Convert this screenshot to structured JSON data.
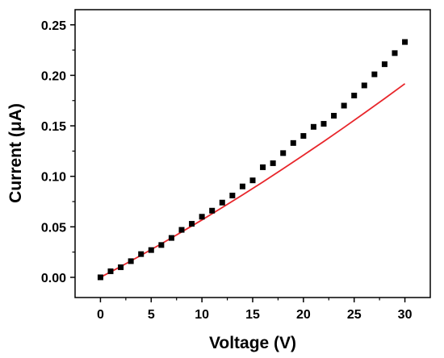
{
  "chart_data": {
    "type": "scatter",
    "xlabel": "Voltage (V)",
    "ylabel": "Current (μA)",
    "xlim": [
      -2.5,
      32.5
    ],
    "ylim": [
      -0.02,
      0.265
    ],
    "x_ticks": [
      0,
      5,
      10,
      15,
      20,
      25,
      30
    ],
    "y_ticks": [
      0.0,
      0.05,
      0.1,
      0.15,
      0.2,
      0.25
    ],
    "y_tick_decimals": 2,
    "grid": false,
    "series": [
      {
        "kind": "scatter",
        "color": "#000000",
        "marker": "square",
        "x": [
          0,
          1,
          2,
          3,
          4,
          5,
          6,
          7,
          8,
          9,
          10,
          11,
          12,
          13,
          14,
          15,
          16,
          17,
          18,
          19,
          20,
          21,
          22,
          23,
          24,
          25,
          26,
          27,
          28,
          29,
          30
        ],
        "y": [
          0.0,
          0.006,
          0.01,
          0.016,
          0.023,
          0.027,
          0.032,
          0.039,
          0.047,
          0.053,
          0.06,
          0.066,
          0.074,
          0.081,
          0.09,
          0.096,
          0.109,
          0.113,
          0.123,
          0.133,
          0.14,
          0.149,
          0.152,
          0.16,
          0.17,
          0.18,
          0.19,
          0.201,
          0.211,
          0.222,
          0.233
        ]
      },
      {
        "kind": "line",
        "color": "#e8262b",
        "x": [
          0,
          2,
          4,
          6,
          8,
          10,
          12,
          14,
          16,
          18,
          20,
          22,
          24,
          26,
          28,
          30
        ],
        "y": [
          0.0,
          0.0107,
          0.0218,
          0.0332,
          0.0449,
          0.0568,
          0.0691,
          0.0816,
          0.0944,
          0.1075,
          0.1209,
          0.1345,
          0.1484,
          0.1626,
          0.177,
          0.1917
        ]
      }
    ]
  }
}
